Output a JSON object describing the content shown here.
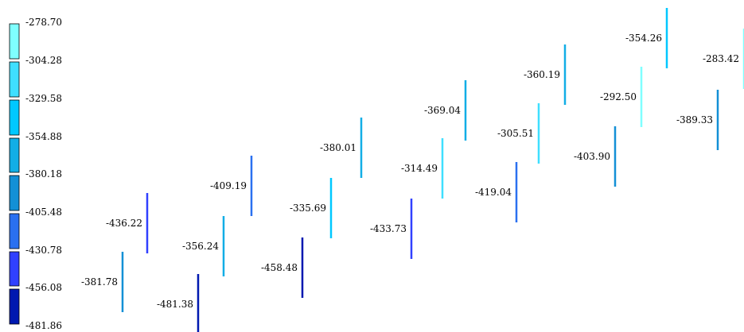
{
  "chart_data": {
    "type": "scatter",
    "legend": {
      "placement": "left",
      "ticks": [
        "-278.70",
        "-304.28",
        "-329.58",
        "-354.88",
        "-380.18",
        "-405.48",
        "-430.78",
        "-456.08",
        "-481.86"
      ],
      "colors": [
        "#7fffff",
        "#3fdfff",
        "#00c8ff",
        "#12aee6",
        "#1390d6",
        "#2a70f0",
        "#3040ff",
        "#0018b0",
        "#001090"
      ]
    },
    "points": [
      {
        "label": "-381.78",
        "value": -381.78
      },
      {
        "label": "-436.22",
        "value": -436.22
      },
      {
        "label": "-481.38",
        "value": -481.38
      },
      {
        "label": "-356.24",
        "value": -356.24
      },
      {
        "label": "-409.19",
        "value": -409.19
      },
      {
        "label": "-458.48",
        "value": -458.48
      },
      {
        "label": "-335.69",
        "value": -335.69
      },
      {
        "label": "-380.01",
        "value": -380.01
      },
      {
        "label": "-433.73",
        "value": -433.73
      },
      {
        "label": "-314.49",
        "value": -314.49
      },
      {
        "label": "-369.04",
        "value": -369.04
      },
      {
        "label": "-419.04",
        "value": -419.04
      },
      {
        "label": "-305.51",
        "value": -305.51
      },
      {
        "label": "-360.19",
        "value": -360.19
      },
      {
        "label": "-403.90",
        "value": -403.9
      },
      {
        "label": "-292.50",
        "value": -292.5
      },
      {
        "label": "-354.26",
        "value": -354.26
      },
      {
        "label": "-389.33",
        "value": -389.33
      },
      {
        "label": "-283.42",
        "value": -283.42
      }
    ]
  }
}
